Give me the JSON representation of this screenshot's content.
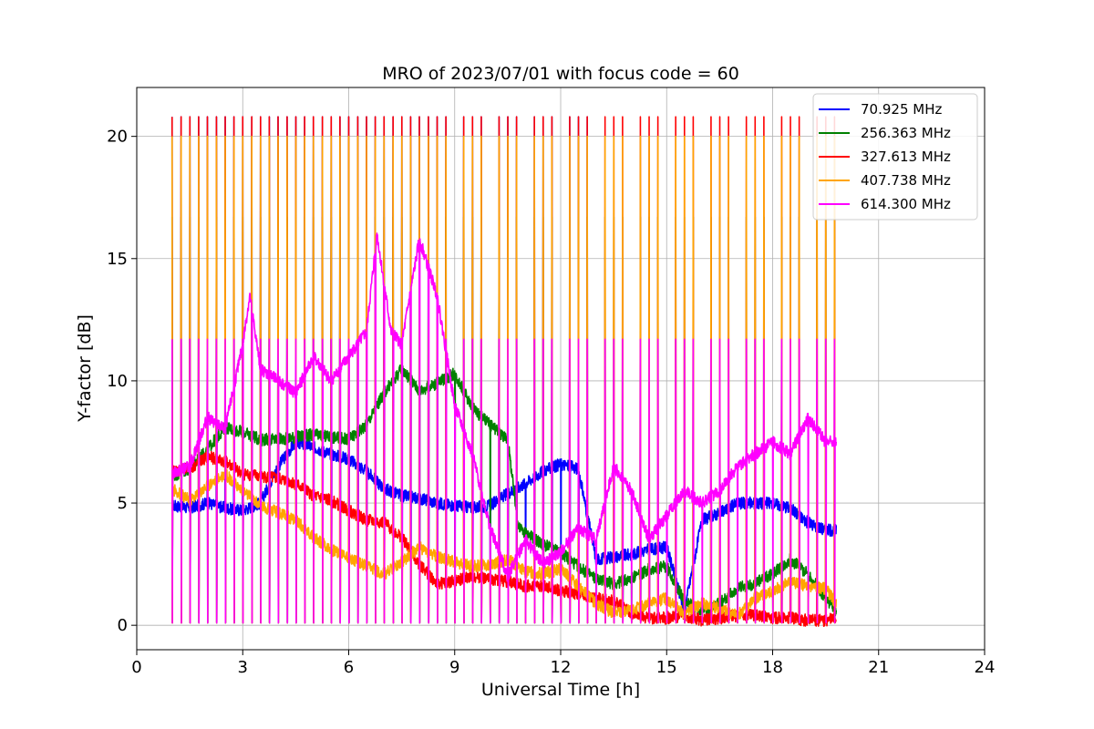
{
  "chart_data": {
    "type": "line",
    "title": "MRO of 2023/07/01 with focus code = 60",
    "xlabel": "Universal Time [h]",
    "ylabel": "Y-factor [dB]",
    "xlim": [
      0,
      24
    ],
    "ylim": [
      -1,
      22
    ],
    "xticks": [
      0,
      3,
      6,
      9,
      12,
      15,
      18,
      21,
      24
    ],
    "yticks": [
      0,
      5,
      10,
      15,
      20
    ],
    "xtick_labels": [
      "0",
      "3",
      "6",
      "9",
      "12",
      "15",
      "18",
      "21",
      "24"
    ],
    "ytick_labels": [
      "0",
      "5",
      "10",
      "15",
      "20"
    ],
    "grid": true,
    "legend_position": "top-right",
    "series": [
      {
        "name": " 70.925 MHz",
        "color": "#0000ff",
        "baseline": [
          [
            1.0,
            4.9
          ],
          [
            1.5,
            4.8
          ],
          [
            2.0,
            5.0
          ],
          [
            2.5,
            4.8
          ],
          [
            3.0,
            4.7
          ],
          [
            3.5,
            5.0
          ],
          [
            4.0,
            6.5
          ],
          [
            4.5,
            7.5
          ],
          [
            5.0,
            7.3
          ],
          [
            5.5,
            7.0
          ],
          [
            6.0,
            6.8
          ],
          [
            6.5,
            6.3
          ],
          [
            7.0,
            5.6
          ],
          [
            7.5,
            5.3
          ],
          [
            8.0,
            5.2
          ],
          [
            8.5,
            5.0
          ],
          [
            9.0,
            4.9
          ],
          [
            9.5,
            4.8
          ],
          [
            10.0,
            4.9
          ],
          [
            10.5,
            5.4
          ],
          [
            11.0,
            5.8
          ],
          [
            11.5,
            6.3
          ],
          [
            12.0,
            6.6
          ],
          [
            12.5,
            6.4
          ],
          [
            13.0,
            2.7
          ],
          [
            13.5,
            2.8
          ],
          [
            14.0,
            2.9
          ],
          [
            14.5,
            3.1
          ],
          [
            15.0,
            3.2
          ],
          [
            15.5,
            0.6
          ],
          [
            16.0,
            4.3
          ],
          [
            16.5,
            4.6
          ],
          [
            17.0,
            5.0
          ],
          [
            17.5,
            5.0
          ],
          [
            18.0,
            5.0
          ],
          [
            18.5,
            4.8
          ],
          [
            19.0,
            4.2
          ],
          [
            19.5,
            3.9
          ],
          [
            19.8,
            3.9
          ]
        ],
        "spike_peak": 20.8,
        "spike_trough": 0.1,
        "spike_window": [
          1.0,
          12.8
        ]
      },
      {
        "name": " 256.363 MHz",
        "color": "#008000",
        "baseline": [
          [
            1.0,
            6.1
          ],
          [
            1.5,
            6.4
          ],
          [
            2.0,
            7.2
          ],
          [
            2.5,
            8.1
          ],
          [
            3.0,
            7.9
          ],
          [
            3.5,
            7.6
          ],
          [
            4.0,
            7.6
          ],
          [
            4.5,
            7.7
          ],
          [
            5.0,
            7.8
          ],
          [
            5.5,
            7.7
          ],
          [
            6.0,
            7.6
          ],
          [
            6.5,
            8.2
          ],
          [
            7.0,
            9.5
          ],
          [
            7.5,
            10.5
          ],
          [
            8.0,
            9.6
          ],
          [
            8.5,
            9.9
          ],
          [
            9.0,
            10.3
          ],
          [
            9.5,
            8.9
          ],
          [
            10.0,
            8.2
          ],
          [
            10.5,
            7.6
          ],
          [
            10.8,
            4.0
          ],
          [
            11.5,
            3.3
          ],
          [
            12.0,
            3.0
          ],
          [
            12.5,
            2.4
          ],
          [
            13.0,
            1.9
          ],
          [
            13.5,
            1.7
          ],
          [
            14.0,
            1.9
          ],
          [
            14.5,
            2.3
          ],
          [
            15.0,
            2.4
          ],
          [
            15.5,
            1.0
          ],
          [
            16.0,
            0.6
          ],
          [
            16.5,
            0.9
          ],
          [
            17.0,
            1.5
          ],
          [
            17.5,
            1.7
          ],
          [
            18.0,
            2.1
          ],
          [
            18.5,
            2.7
          ],
          [
            19.0,
            2.1
          ],
          [
            19.5,
            1.1
          ],
          [
            19.8,
            0.6
          ]
        ],
        "spike_peak": 16.7,
        "spike_trough": 0.1
      },
      {
        "name": " 327.613 MHz",
        "color": "#ff0000",
        "baseline": [
          [
            1.0,
            6.3
          ],
          [
            1.5,
            6.4
          ],
          [
            2.0,
            6.9
          ],
          [
            2.5,
            6.7
          ],
          [
            3.0,
            6.2
          ],
          [
            3.5,
            6.1
          ],
          [
            4.0,
            6.0
          ],
          [
            4.5,
            5.8
          ],
          [
            5.0,
            5.3
          ],
          [
            5.5,
            5.1
          ],
          [
            6.0,
            4.7
          ],
          [
            6.5,
            4.3
          ],
          [
            7.0,
            4.2
          ],
          [
            7.5,
            3.6
          ],
          [
            8.0,
            2.5
          ],
          [
            8.5,
            1.7
          ],
          [
            9.0,
            1.8
          ],
          [
            9.5,
            2.0
          ],
          [
            10.0,
            1.9
          ],
          [
            10.5,
            1.8
          ],
          [
            11.0,
            1.6
          ],
          [
            11.5,
            1.6
          ],
          [
            12.0,
            1.4
          ],
          [
            12.5,
            1.3
          ],
          [
            13.0,
            1.1
          ],
          [
            13.5,
            1.0
          ],
          [
            14.0,
            0.5
          ],
          [
            14.5,
            0.3
          ],
          [
            15.0,
            0.3
          ],
          [
            15.5,
            0.4
          ],
          [
            16.0,
            0.2
          ],
          [
            16.5,
            0.3
          ],
          [
            17.0,
            0.4
          ],
          [
            17.5,
            0.4
          ],
          [
            18.0,
            0.3
          ],
          [
            18.5,
            0.3
          ],
          [
            19.0,
            0.2
          ],
          [
            19.5,
            0.2
          ],
          [
            19.8,
            0.3
          ]
        ],
        "spike_peak": 20.8,
        "spike_trough": 0.1
      },
      {
        "name": " 407.738 MHz",
        "color": "#ffa500",
        "baseline": [
          [
            1.0,
            5.6
          ],
          [
            1.5,
            5.1
          ],
          [
            2.0,
            5.7
          ],
          [
            2.5,
            6.2
          ],
          [
            3.0,
            5.5
          ],
          [
            3.5,
            4.9
          ],
          [
            4.0,
            4.6
          ],
          [
            4.5,
            4.3
          ],
          [
            5.0,
            3.6
          ],
          [
            5.5,
            3.1
          ],
          [
            6.0,
            2.8
          ],
          [
            6.5,
            2.4
          ],
          [
            7.0,
            2.1
          ],
          [
            7.5,
            2.6
          ],
          [
            8.0,
            3.2
          ],
          [
            8.5,
            2.8
          ],
          [
            9.0,
            2.6
          ],
          [
            9.5,
            2.4
          ],
          [
            10.0,
            2.5
          ],
          [
            10.5,
            2.7
          ],
          [
            11.0,
            2.2
          ],
          [
            11.5,
            2.1
          ],
          [
            12.0,
            2.3
          ],
          [
            12.5,
            1.6
          ],
          [
            13.0,
            0.9
          ],
          [
            13.5,
            0.5
          ],
          [
            14.0,
            0.6
          ],
          [
            14.5,
            0.9
          ],
          [
            15.0,
            1.1
          ],
          [
            15.5,
            0.5
          ],
          [
            16.0,
            0.9
          ],
          [
            16.5,
            0.7
          ],
          [
            17.0,
            0.4
          ],
          [
            17.5,
            1.1
          ],
          [
            18.0,
            1.4
          ],
          [
            18.5,
            1.8
          ],
          [
            19.0,
            1.6
          ],
          [
            19.5,
            1.5
          ],
          [
            19.8,
            0.9
          ]
        ],
        "spike_peak": 20.0,
        "spike_trough": 0.1
      },
      {
        "name": " 614.300 MHz",
        "color": "#ff00ff",
        "baseline": [
          [
            1.0,
            6.2
          ],
          [
            1.5,
            6.5
          ],
          [
            2.0,
            8.5
          ],
          [
            2.5,
            8.0
          ],
          [
            3.0,
            11.5
          ],
          [
            3.2,
            13.5
          ],
          [
            3.5,
            10.5
          ],
          [
            4.0,
            10.0
          ],
          [
            4.5,
            9.5
          ],
          [
            5.0,
            11.0
          ],
          [
            5.5,
            10.0
          ],
          [
            6.0,
            11.0
          ],
          [
            6.5,
            12.0
          ],
          [
            6.8,
            16.0
          ],
          [
            7.2,
            12.0
          ],
          [
            7.5,
            11.5
          ],
          [
            8.0,
            15.8
          ],
          [
            8.5,
            13.5
          ],
          [
            9.0,
            9.0
          ],
          [
            9.5,
            7.0
          ],
          [
            10.0,
            4.0
          ],
          [
            10.5,
            2.0
          ],
          [
            11.0,
            3.5
          ],
          [
            11.5,
            2.5
          ],
          [
            12.0,
            3.0
          ],
          [
            12.5,
            4.0
          ],
          [
            13.0,
            3.5
          ],
          [
            13.5,
            6.5
          ],
          [
            14.0,
            5.5
          ],
          [
            14.5,
            3.5
          ],
          [
            15.0,
            4.5
          ],
          [
            15.5,
            5.5
          ],
          [
            16.0,
            5.0
          ],
          [
            16.5,
            5.5
          ],
          [
            17.0,
            6.5
          ],
          [
            17.5,
            7.0
          ],
          [
            18.0,
            7.5
          ],
          [
            18.5,
            7.0
          ],
          [
            19.0,
            8.5
          ],
          [
            19.5,
            7.5
          ],
          [
            19.8,
            7.5
          ]
        ],
        "spike_peak": 11.7,
        "spike_trough": 0.1
      }
    ],
    "spike_interval_hours": 0.25,
    "data_range": [
      1.0,
      19.8
    ]
  }
}
